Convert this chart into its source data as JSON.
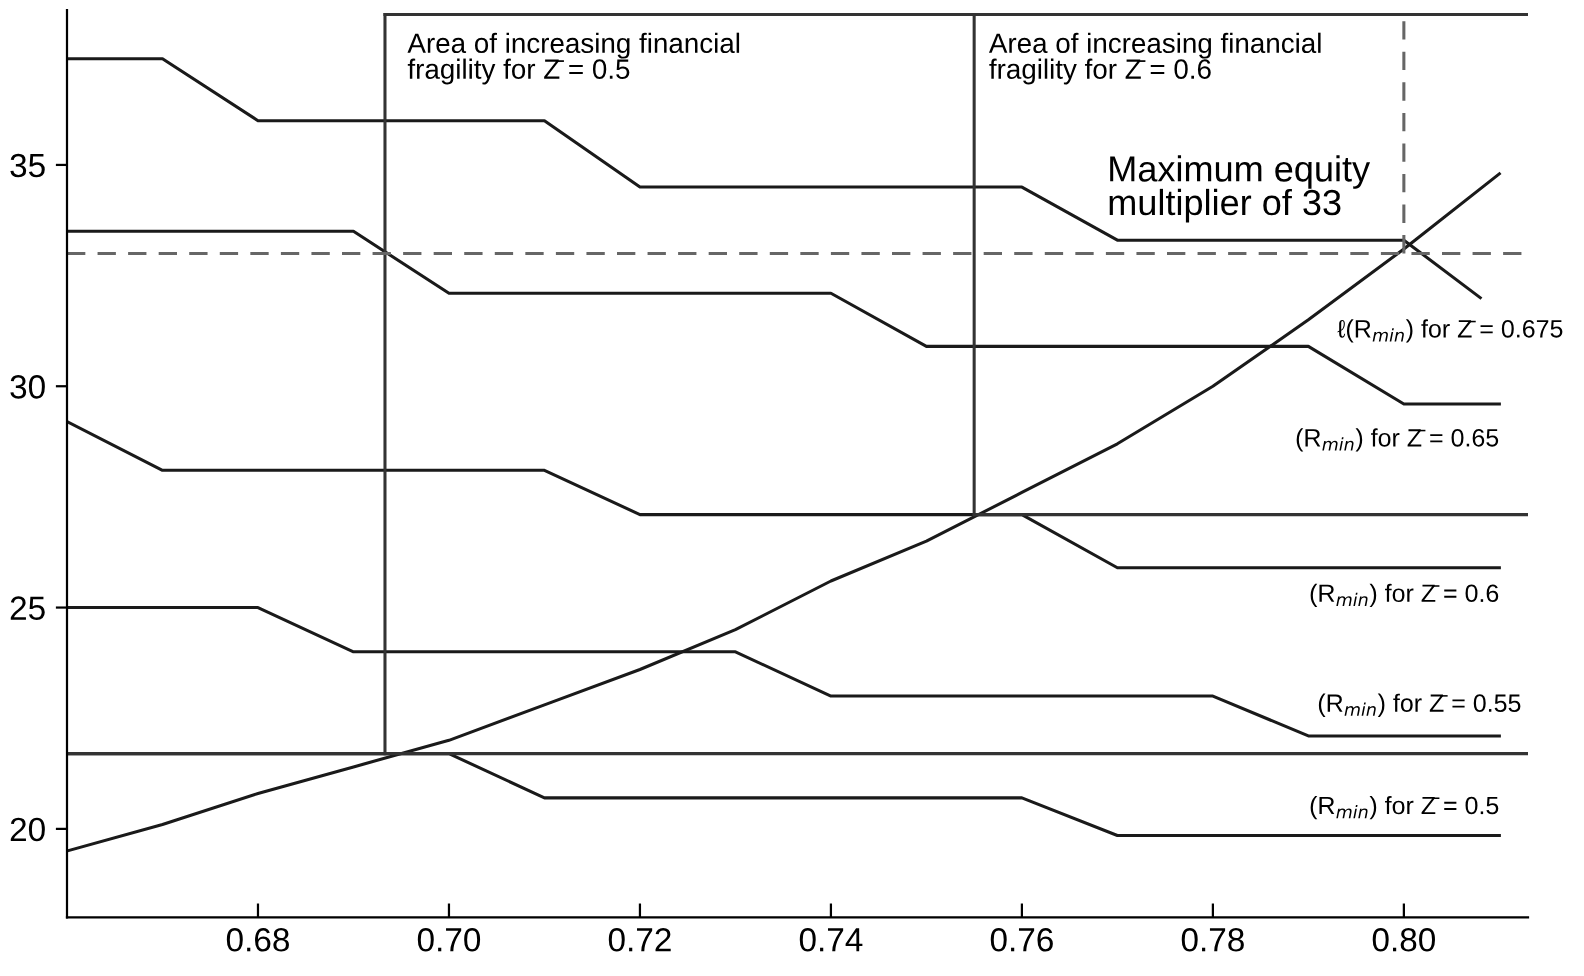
{
  "chart_data": {
    "type": "line",
    "xlim": [
      0.66,
      0.813
    ],
    "ylim": [
      18,
      38.5
    ],
    "xticks": [
      {
        "value": 0.68,
        "label": "0.68"
      },
      {
        "value": 0.7,
        "label": "0.70"
      },
      {
        "value": 0.72,
        "label": "0.72"
      },
      {
        "value": 0.74,
        "label": "0.74"
      },
      {
        "value": 0.76,
        "label": "0.76"
      },
      {
        "value": 0.78,
        "label": "0.78"
      },
      {
        "value": 0.8,
        "label": "0.80"
      }
    ],
    "yticks": [
      20,
      25,
      30,
      35
    ],
    "grid": false,
    "legend": false,
    "marker": "none",
    "line_style": "solid",
    "series": [
      {
        "name": "ℓ(R$_{min}$) for Z̄ = 0.675",
        "color": "#1a1a1a",
        "x": [
          0.66,
          0.67,
          0.68,
          0.71,
          0.72,
          0.76,
          0.77,
          0.8,
          0.808
        ],
        "values": [
          37.4,
          37.4,
          36.0,
          36.0,
          34.5,
          34.5,
          33.3,
          33.3,
          32.0
        ]
      },
      {
        "name": "(R$_{min}$) for Z̄ = 0.65",
        "color": "#1a1a1a",
        "x": [
          0.66,
          0.69,
          0.7,
          0.74,
          0.75,
          0.79,
          0.8,
          0.81
        ],
        "values": [
          33.5,
          33.5,
          32.1,
          32.1,
          30.9,
          30.9,
          29.6,
          29.6
        ]
      },
      {
        "name": "(R$_{min}$) for Z̄ = 0.6",
        "color": "#1a1a1a",
        "x": [
          0.66,
          0.67,
          0.71,
          0.72,
          0.76,
          0.77,
          0.81
        ],
        "values": [
          29.2,
          28.1,
          28.1,
          27.1,
          27.1,
          25.9,
          25.9
        ]
      },
      {
        "name": "(R$_{min}$) for Z̄ = 0.55",
        "color": "#1a1a1a",
        "x": [
          0.66,
          0.68,
          0.69,
          0.73,
          0.74,
          0.78,
          0.79,
          0.81
        ],
        "values": [
          25.0,
          25.0,
          24.0,
          24.0,
          23.0,
          23.0,
          22.1,
          22.1
        ]
      },
      {
        "name": "(R$_{min}$) for Z̄ = 0.5",
        "color": "#1a1a1a",
        "x": [
          0.66,
          0.7,
          0.71,
          0.76,
          0.77,
          0.81
        ],
        "values": [
          21.7,
          21.7,
          20.7,
          20.7,
          19.85,
          19.85
        ]
      },
      {
        "color": "#1a1a1a",
        "x": [
          0.66,
          0.67,
          0.68,
          0.69,
          0.7,
          0.71,
          0.72,
          0.73,
          0.74,
          0.75,
          0.76,
          0.77,
          0.78,
          0.79,
          0.8,
          0.81
        ],
        "values": [
          19.5,
          20.1,
          20.8,
          21.4,
          22.0,
          22.8,
          23.6,
          24.5,
          25.6,
          26.5,
          27.6,
          28.7,
          30.0,
          31.5,
          33.1,
          34.8
        ]
      },
      {
        "color": "#333333",
        "x": [
          0.66,
          0.813
        ],
        "values": [
          21.7,
          21.7
        ]
      },
      {
        "color": "#333333",
        "x": [
          0.6933,
          0.813
        ],
        "values": [
          38.4,
          38.4
        ]
      },
      {
        "color": "#333333",
        "x": [
          0.755,
          0.813
        ],
        "values": [
          27.1,
          27.1
        ]
      },
      {
        "color": "#333333",
        "x": [
          0.6933,
          0.6933
        ],
        "values": [
          21.7,
          38.4
        ]
      },
      {
        "color": "#333333",
        "x": [
          0.755,
          0.755
        ],
        "values": [
          27.1,
          38.4
        ]
      },
      {
        "color": "#666666",
        "x": [
          0.66,
          0.813
        ],
        "values": [
          33.0,
          33.0
        ],
        "line_style": "dashed"
      },
      {
        "color": "#666666",
        "x": [
          0.8,
          0.8
        ],
        "values": [
          33.0,
          38.4
        ],
        "line_style": "dashed"
      }
    ],
    "annotations": [
      "Area of increasing financial\nfragility for Z̄ = 0.5",
      "Area of increasing financial\nfragility for Z̄ = 0.6",
      "Maximum equity\nmultiplier of 33"
    ]
  }
}
